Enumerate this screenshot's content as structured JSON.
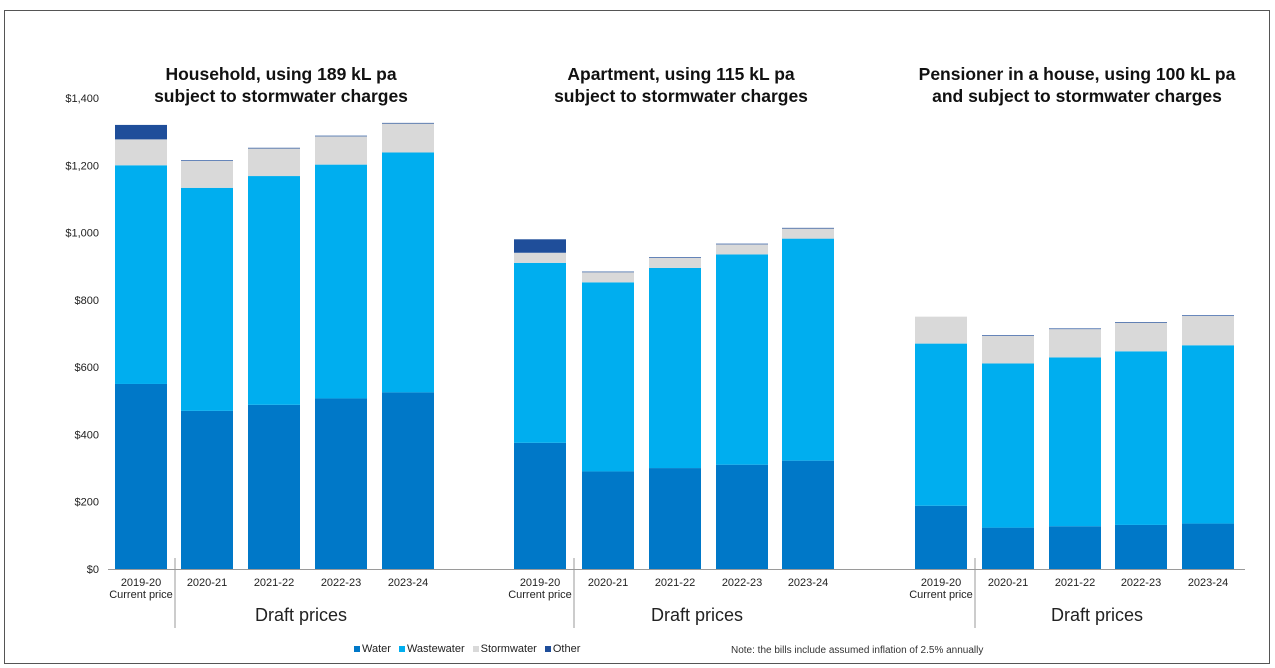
{
  "chart_data": {
    "type": "bar",
    "stacked": true,
    "y_axis": {
      "ylim": [
        0,
        1400
      ],
      "ticks": [
        "$0",
        "$200",
        "$400",
        "$600",
        "$800",
        "$1,000",
        "$1,200",
        "$1,400"
      ],
      "tick_values": [
        0,
        200,
        400,
        600,
        800,
        1000,
        1200,
        1400
      ]
    },
    "legend": {
      "position": "bottom",
      "entries": [
        {
          "name": "Water",
          "color": "#0078C8"
        },
        {
          "name": "Wastewater",
          "color": "#00AEEF"
        },
        {
          "name": "Stormwater",
          "color": "#D9D9D9"
        },
        {
          "name": "Other",
          "color": "#1F4E9A"
        }
      ]
    },
    "group_caption": "Draft prices",
    "note": "Note: the bills include assumed inflation of 2.5% annually",
    "panels": [
      {
        "title": [
          "Household, using 189 kL pa",
          "subject to stormwater charges"
        ],
        "categories": [
          [
            "2019-20",
            "Current price"
          ],
          [
            "2020-21"
          ],
          [
            "2021-22"
          ],
          [
            "2022-23"
          ],
          [
            "2023-24"
          ]
        ],
        "series": [
          {
            "name": "Water",
            "values": [
              550,
              470,
              488,
              507,
              525
            ]
          },
          {
            "name": "Wastewater",
            "values": [
              650,
              663,
              680,
              695,
              713
            ]
          },
          {
            "name": "Stormwater",
            "values": [
              77,
              80,
              82,
              84,
              86
            ]
          },
          {
            "name": "Other",
            "values": [
              43,
              2,
              2,
              2,
              2
            ]
          }
        ]
      },
      {
        "title": [
          "Apartment, using 115 kL pa",
          "subject to stormwater charges"
        ],
        "categories": [
          [
            "2019-20",
            "Current price"
          ],
          [
            "2020-21"
          ],
          [
            "2021-22"
          ],
          [
            "2022-23"
          ],
          [
            "2023-24"
          ]
        ],
        "series": [
          {
            "name": "Water",
            "values": [
              375,
              290,
              300,
              310,
              322
            ]
          },
          {
            "name": "Wastewater",
            "values": [
              535,
              562,
              595,
              625,
              660
            ]
          },
          {
            "name": "Stormwater",
            "values": [
              30,
              30,
              30,
              30,
              30
            ]
          },
          {
            "name": "Other",
            "values": [
              40,
              2,
              2,
              2,
              2
            ]
          }
        ]
      },
      {
        "title": [
          "Pensioner in a house, using 100 kL pa",
          "and subject to stormwater charges"
        ],
        "categories": [
          [
            "2019-20",
            "Current price"
          ],
          [
            "2020-21"
          ],
          [
            "2021-22"
          ],
          [
            "2022-23"
          ],
          [
            "2023-24"
          ]
        ],
        "series": [
          {
            "name": "Water",
            "values": [
              188,
              123,
              127,
              131,
              135
            ]
          },
          {
            "name": "Wastewater",
            "values": [
              482,
              488,
              502,
              516,
              530
            ]
          },
          {
            "name": "Stormwater",
            "values": [
              80,
              82,
              84,
              85,
              87
            ]
          },
          {
            "name": "Other",
            "values": [
              0,
              2,
              2,
              2,
              2
            ]
          }
        ]
      }
    ]
  }
}
